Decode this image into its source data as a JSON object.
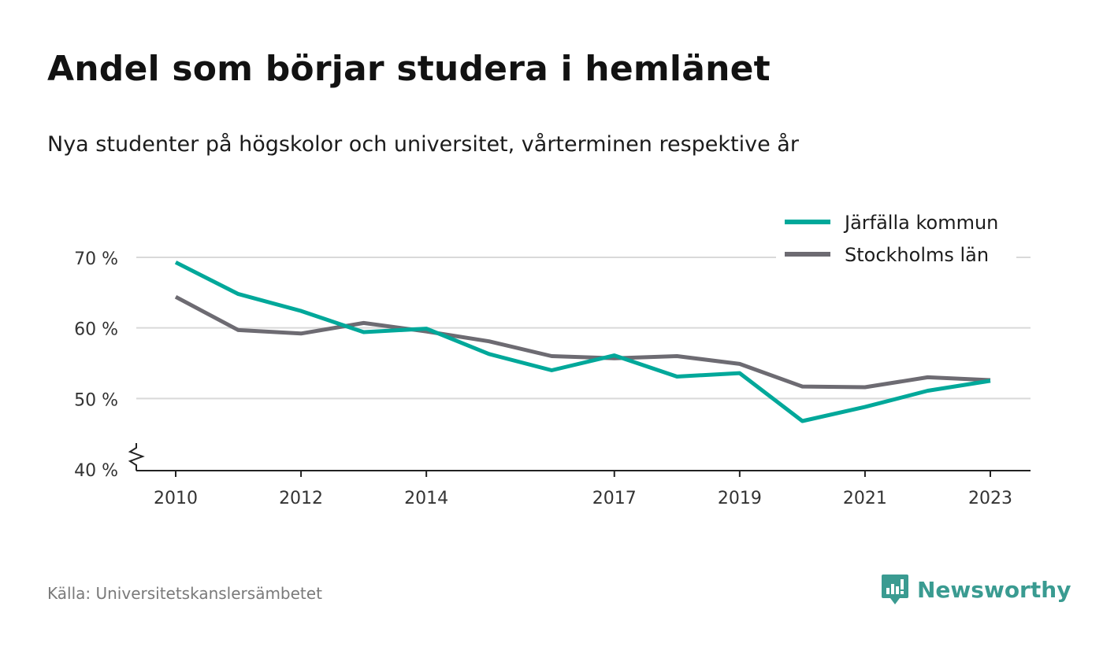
{
  "title": "Andel som börjar studera i hemlänet",
  "subtitle": "Nya studenter på högskolor och universitet, vårterminen respektive år",
  "source": "Källa: Universitetskanslersämbetet",
  "brand": {
    "name": "Newsworthy",
    "icon": "newsworthy-logo-icon",
    "color": "#3a9b91"
  },
  "chart_data": {
    "type": "line",
    "x": [
      2010,
      2011,
      2012,
      2013,
      2014,
      2015,
      2016,
      2017,
      2018,
      2019,
      2020,
      2021,
      2022,
      2023
    ],
    "x_tick_labels": [
      "2010",
      "2012",
      "2014",
      "2017",
      "2019",
      "2021",
      "2023"
    ],
    "y_tick_labels": [
      "70 %",
      "60 %",
      "50 %",
      "40 %"
    ],
    "y_ticks": [
      70,
      60,
      50,
      40
    ],
    "ylim": [
      40,
      70
    ],
    "xlim": [
      2010,
      2023
    ],
    "y_axis_break": true,
    "grid": true,
    "legend_position": "top-right",
    "series": [
      {
        "name": "Järfälla kommun",
        "color": "#00a89a",
        "values": [
          69.3,
          64.8,
          62.4,
          59.4,
          59.9,
          56.3,
          54.0,
          56.1,
          53.1,
          53.6,
          46.8,
          48.8,
          51.1,
          52.5
        ]
      },
      {
        "name": "Stockholms län",
        "color": "#6d6b72",
        "values": [
          64.4,
          59.7,
          59.2,
          60.7,
          59.5,
          58.1,
          56.0,
          55.7,
          56.0,
          54.9,
          51.7,
          51.6,
          53.0,
          52.6
        ]
      }
    ]
  }
}
